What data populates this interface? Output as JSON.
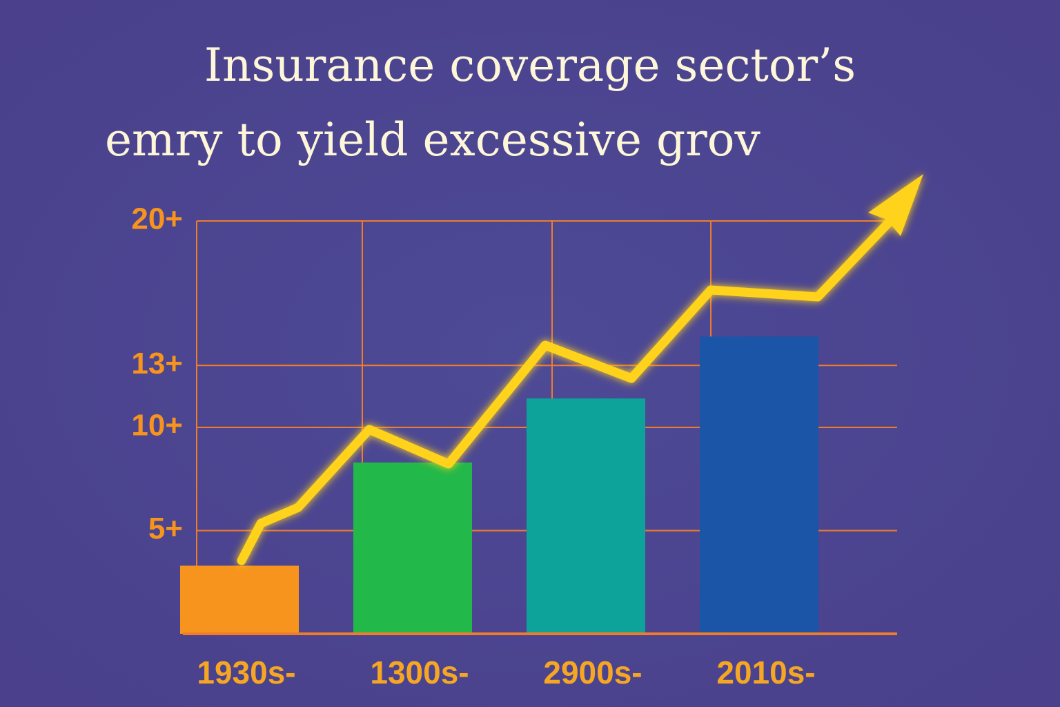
{
  "chart_data": {
    "type": "bar",
    "title": [
      "Insurance coverage sector’s",
      "emry to yield excessive grov"
    ],
    "categories": [
      "1930s-",
      "1300s-",
      "2900s-",
      "2010s-"
    ],
    "values": [
      3.3,
      8.3,
      11.4,
      14.4
    ],
    "colors": [
      "#f7941d",
      "#22b84a",
      "#0ea39a",
      "#1b55a8"
    ],
    "ylim": [
      0,
      20
    ],
    "yticks": [
      {
        "value": 5,
        "label": "5+"
      },
      {
        "value": 10,
        "label": "10+"
      },
      {
        "value": 13,
        "label": "13+"
      },
      {
        "value": 20,
        "label": "20+"
      }
    ],
    "grid": true
  }
}
